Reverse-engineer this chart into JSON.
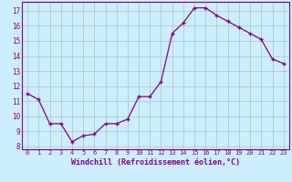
{
  "x": [
    0,
    1,
    2,
    3,
    4,
    5,
    6,
    7,
    8,
    9,
    10,
    11,
    12,
    13,
    14,
    15,
    16,
    17,
    18,
    19,
    20,
    21,
    22,
    23
  ],
  "y": [
    11.5,
    11.1,
    9.5,
    9.5,
    8.3,
    8.7,
    8.8,
    9.5,
    9.5,
    9.8,
    11.3,
    11.3,
    12.3,
    15.5,
    16.2,
    17.2,
    17.2,
    16.7,
    16.3,
    15.9,
    15.5,
    15.1,
    13.8,
    13.5
  ],
  "xlabel": "Windchill (Refroidissement éolien,°C)",
  "ylim": [
    7.8,
    17.6
  ],
  "xlim": [
    -0.5,
    23.5
  ],
  "yticks": [
    8,
    9,
    10,
    11,
    12,
    13,
    14,
    15,
    16,
    17
  ],
  "xticks": [
    0,
    1,
    2,
    3,
    4,
    5,
    6,
    7,
    8,
    9,
    10,
    11,
    12,
    13,
    14,
    15,
    16,
    17,
    18,
    19,
    20,
    21,
    22,
    23
  ],
  "line_color": "#800080",
  "marker": "+",
  "bg_color": "#cceeff",
  "grid_color": "#aacccc",
  "axis_label_color": "#800080",
  "tick_color": "#800080",
  "spine_color": "#800080"
}
